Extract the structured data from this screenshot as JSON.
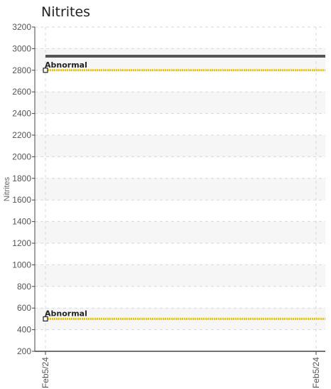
{
  "chart_data": {
    "type": "line",
    "title": "Nitrites",
    "ylabel": "Nitrites",
    "xlabel": "",
    "ylim": [
      200,
      3200
    ],
    "yticks": [
      200,
      400,
      600,
      800,
      1000,
      1200,
      1400,
      1600,
      1800,
      2000,
      2200,
      2400,
      2600,
      2800,
      3000,
      3200
    ],
    "x_tick_labels": [
      "Feb5/24",
      "Feb5/24"
    ],
    "grid": true,
    "series": [
      {
        "values": [
          2930,
          2930
        ],
        "color": "#555555"
      }
    ],
    "reference_lines": [
      {
        "label": "Abnormal",
        "value": 2800,
        "color": "#f2c200"
      },
      {
        "label": "Abnormal",
        "value": 500,
        "color": "#f2c200"
      }
    ]
  }
}
